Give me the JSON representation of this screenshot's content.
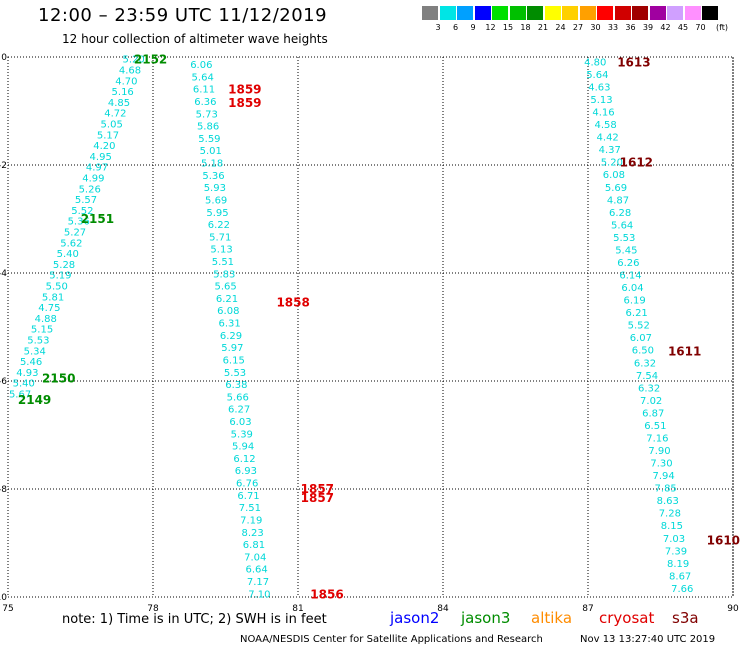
{
  "header": {
    "title": "12:00 – 23:59 UTC 11/12/2019",
    "subtitle": "12 hour collection of altimeter wave heights"
  },
  "legend": {
    "unit": "(ft)",
    "items": [
      {
        "label": "3",
        "color": "#808080"
      },
      {
        "label": "6",
        "color": "#00e5e5"
      },
      {
        "label": "9",
        "color": "#00a0ff"
      },
      {
        "label": "12",
        "color": "#0000ff"
      },
      {
        "label": "15",
        "color": "#00e000"
      },
      {
        "label": "18",
        "color": "#00c000"
      },
      {
        "label": "21",
        "color": "#008c00"
      },
      {
        "label": "24",
        "color": "#ffff00"
      },
      {
        "label": "27",
        "color": "#ffd000"
      },
      {
        "label": "30",
        "color": "#ffa000"
      },
      {
        "label": "33",
        "color": "#ff0000"
      },
      {
        "label": "36",
        "color": "#d00000"
      },
      {
        "label": "39",
        "color": "#a00000"
      },
      {
        "label": "42",
        "color": "#a000a0"
      },
      {
        "label": "45",
        "color": "#d0a0ff"
      },
      {
        "label": "70",
        "color": "#ff90ff"
      },
      {
        "label": "",
        "color": "#000000"
      }
    ]
  },
  "footer": {
    "note": "note: 1) Time is in UTC; 2) SWH is in feet",
    "credit": "NOAA/NESDIS Center for Satellite Applications and Research",
    "generated": "Nov 13 13:27:40 UTC 2019",
    "satellites": [
      {
        "name": "jason2",
        "color": "#0000ff"
      },
      {
        "name": "jason3",
        "color": "#008c00"
      },
      {
        "name": "altika",
        "color": "#ff8c00"
      },
      {
        "name": "cryosat",
        "color": "#e00000"
      },
      {
        "name": "s3a",
        "color": "#800000"
      }
    ]
  },
  "chart_data": {
    "type": "scatter",
    "xlim": [
      75,
      90
    ],
    "ylim": [
      -10,
      0
    ],
    "x_ticks": [
      75,
      78,
      81,
      84,
      87,
      90
    ],
    "y_ticks": [
      0,
      -2,
      -4,
      -6,
      -8,
      -10
    ],
    "grid": true,
    "tracks": [
      {
        "satellite": "jason3",
        "label_color": "#008c00",
        "value_color": "#00d8d8",
        "x_start": 77.6,
        "y_start": -0.05,
        "x_end": 75.25,
        "y_end": -6.25,
        "values": [
          "5.20",
          "4.68",
          "4.70",
          "5.16",
          "4.85",
          "4.72",
          "5.05",
          "5.17",
          "4.20",
          "4.95",
          "4.97",
          "4.99",
          "5.26",
          "5.57",
          "5.52",
          "5.36",
          "5.27",
          "5.62",
          "5.40",
          "5.28",
          "5.19",
          "5.50",
          "5.81",
          "4.75",
          "4.88",
          "5.15",
          "5.53",
          "5.34",
          "5.46",
          "4.93",
          "5.40",
          "5.67"
        ],
        "times": [
          {
            "label": "2152",
            "x": 77.95,
            "y": -0.05
          },
          {
            "label": "2151",
            "x": 76.85,
            "y": -3.0
          },
          {
            "label": "2150",
            "x": 76.05,
            "y": -5.95
          },
          {
            "label": "2149",
            "x": 75.55,
            "y": -6.35
          }
        ]
      },
      {
        "satellite": "cryosat",
        "label_color": "#e00000",
        "value_color": "#00d8d8",
        "x_start": 79.0,
        "y_start": -0.15,
        "x_end": 80.2,
        "y_end": -9.95,
        "values": [
          "6.06",
          "5.64",
          "6.11",
          "6.36",
          "5.73",
          "5.86",
          "5.59",
          "5.01",
          "5.18",
          "5.36",
          "5.93",
          "5.69",
          "5.95",
          "6.22",
          "5.71",
          "5.13",
          "5.51",
          "5.83",
          "5.65",
          "6.21",
          "6.08",
          "6.31",
          "6.29",
          "5.97",
          "6.15",
          "5.53",
          "6.38",
          "5.66",
          "6.27",
          "6.03",
          "5.39",
          "5.94",
          "6.12",
          "6.93",
          "6.76",
          "6.71",
          "7.51",
          "7.19",
          "8.23",
          "6.81",
          "7.04",
          "6.64",
          "7.17",
          "7.10"
        ],
        "times": [
          {
            "label": "1859",
            "x": 79.9,
            "y": -0.6
          },
          {
            "label": "1859",
            "x": 79.9,
            "y": -0.85
          },
          {
            "label": "1858",
            "x": 80.9,
            "y": -4.55
          },
          {
            "label": "1857",
            "x": 81.4,
            "y": -8.0
          },
          {
            "label": "1857",
            "x": 81.4,
            "y": -8.17
          },
          {
            "label": "1856",
            "x": 81.6,
            "y": -9.95
          }
        ]
      },
      {
        "satellite": "s3a",
        "label_color": "#800000",
        "value_color": "#00d8d8",
        "x_start": 87.15,
        "y_start": -0.1,
        "x_end": 88.95,
        "y_end": -9.85,
        "values": [
          "4.80",
          "5.64",
          "4.63",
          "5.13",
          "4.16",
          "4.58",
          "4.42",
          "4.37",
          "5.20",
          "6.08",
          "5.69",
          "4.87",
          "6.28",
          "5.64",
          "5.53",
          "5.45",
          "6.26",
          "6.14",
          "6.04",
          "6.19",
          "6.21",
          "5.52",
          "6.07",
          "6.50",
          "6.32",
          "7.54",
          "6.32",
          "7.02",
          "6.87",
          "6.51",
          "7.16",
          "7.90",
          "7.30",
          "7.94",
          "7.85",
          "8.63",
          "7.28",
          "8.15",
          "7.03",
          "7.39",
          "8.19",
          "8.67",
          "7.66"
        ],
        "times": [
          {
            "label": "1613",
            "x": 87.95,
            "y": -0.1
          },
          {
            "label": "1612",
            "x": 88.0,
            "y": -1.95
          },
          {
            "label": "1611",
            "x": 89.0,
            "y": -5.45
          },
          {
            "label": "1610",
            "x": 89.8,
            "y": -8.95
          }
        ]
      }
    ]
  }
}
